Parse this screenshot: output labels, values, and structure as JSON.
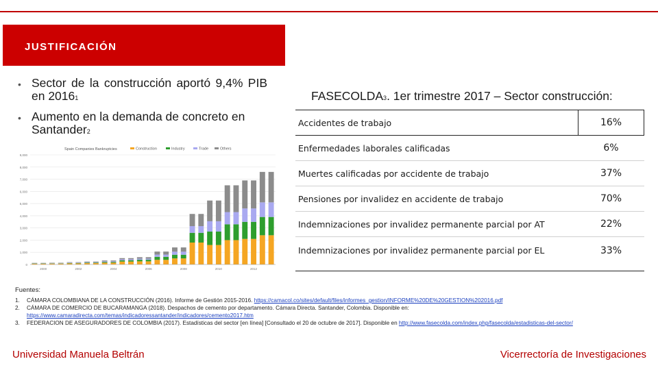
{
  "header": {
    "title": "JUSTIFICACIÓN"
  },
  "bullets": [
    {
      "text": "Sector de la construcción aportó 9,4% PIB en 2016",
      "ref": "1"
    },
    {
      "text": "Aumento en la demanda de concreto en Santander",
      "ref": "2"
    }
  ],
  "fasecolda": {
    "title": "FASECOLDA",
    "ref": "3",
    "title_rest": ". 1er trimestre 2017 – Sector construcción:",
    "rows": [
      {
        "label": "Accidentes de trabajo",
        "value": "16%"
      },
      {
        "label": "Enfermedades laborales calificadas",
        "value": "6%"
      },
      {
        "label": "Muertes calificadas por accidente de trabajo",
        "value": "37%"
      },
      {
        "label": "Pensiones por invalidez en accidente de trabajo",
        "value": "70%"
      },
      {
        "label": "Indemnizaciones por invalidez permanente parcial por AT",
        "value": "22%"
      },
      {
        "label": "Indemnizaciones por invalidez permanente parcial por EL",
        "value": "33%"
      }
    ]
  },
  "chart_data": {
    "type": "bar",
    "stacked": true,
    "title": "Spain Companies Bankruptcies",
    "series_colors": [
      "#f5a623",
      "#2e9e2e",
      "#a9a9f0",
      "#8c8c8c"
    ],
    "legend": [
      "Construction",
      "Industry",
      "Trade",
      "Others"
    ],
    "ylim": [
      0,
      9000
    ],
    "ytick_labels": [
      "0",
      "1,000",
      "2,000",
      "3,000",
      "4,000",
      "5,000",
      "6,000",
      "7,000",
      "8,000",
      "9,000"
    ],
    "xtick_labels": [
      "2000",
      "2002",
      "2004",
      "2006",
      "2008",
      "2010",
      "2012"
    ],
    "stacks": [
      [
        60,
        20,
        20,
        30
      ],
      [
        60,
        20,
        20,
        30
      ],
      [
        70,
        20,
        20,
        30
      ],
      [
        70,
        20,
        20,
        30
      ],
      [
        90,
        30,
        30,
        40
      ],
      [
        90,
        30,
        30,
        40
      ],
      [
        110,
        40,
        40,
        50
      ],
      [
        110,
        40,
        40,
        50
      ],
      [
        140,
        60,
        60,
        70
      ],
      [
        140,
        60,
        60,
        70
      ],
      [
        240,
        100,
        80,
        100
      ],
      [
        240,
        100,
        80,
        100
      ],
      [
        260,
        130,
        90,
        120
      ],
      [
        260,
        130,
        90,
        120
      ],
      [
        380,
        250,
        180,
        250
      ],
      [
        380,
        250,
        180,
        250
      ],
      [
        500,
        300,
        250,
        350
      ],
      [
        500,
        300,
        250,
        350
      ],
      [
        1800,
        800,
        550,
        1000
      ],
      [
        1800,
        800,
        550,
        1000
      ],
      [
        1600,
        1100,
        850,
        1700
      ],
      [
        1600,
        1100,
        850,
        1700
      ],
      [
        2000,
        1300,
        1000,
        2200
      ],
      [
        2000,
        1300,
        1000,
        2200
      ],
      [
        2100,
        1400,
        1100,
        2300
      ],
      [
        2100,
        1400,
        1100,
        2300
      ],
      [
        2400,
        1500,
        1200,
        2500
      ],
      [
        2400,
        1500,
        1200,
        2500
      ]
    ]
  },
  "sources": {
    "title": "Fuentes:",
    "items": [
      {
        "num": "1.",
        "text": "CÁMARA COLOMBIANA DE LA CONSTRUCCIÓN (2016). Informe de Gestión 2015-2016. ",
        "link": "https://camacol.co/sites/default/files/informes_gestion/INFORME%20DE%20GESTION%202016.pdf"
      },
      {
        "num": "2.",
        "text": "CÁMARA DE COMERCIO DE BUCARAMANGA (2018). Despachos de cemento por departamento. Cámara Directa. Santander, Colombia. Disponible en:",
        "link": "https://www.camaradirecta.com/temas/indicadoressantander/indicadores/cemento2017.htm"
      },
      {
        "num": "3.",
        "text": "FEDERACION DE ASEGURADORES DE COLOMBIA (2017). Estadísticas del sector [en línea] [Consultado el 20 de octubre de 2017]. Disponible en ",
        "link": "http://www.fasecolda.com/index.php/fasecolda/estadisticas-del-sector/"
      }
    ]
  },
  "footer": {
    "left": "Universidad Manuela Beltrán",
    "right": "Vicerrectoría de Investigaciones"
  }
}
